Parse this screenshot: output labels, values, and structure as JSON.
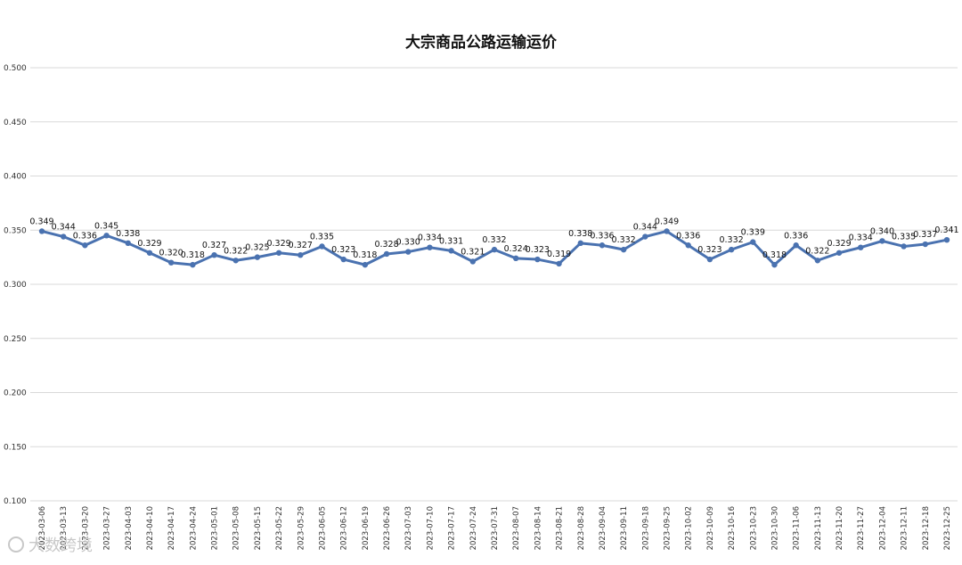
{
  "watermark": "大数跨境",
  "colors": {
    "series": "#4a72b0",
    "grid": "#d9d9d9",
    "background": "#ffffff"
  },
  "chart_data": {
    "type": "line",
    "title": "大宗商品公路运输运价",
    "xlabel": "",
    "ylabel": "",
    "ylim": [
      0.1,
      0.5
    ],
    "yticks": [
      "0.100",
      "0.150",
      "0.200",
      "0.250",
      "0.300",
      "0.350",
      "0.400",
      "0.450",
      "0.500"
    ],
    "grid": true,
    "legend": "none",
    "categories": [
      "2023-03-06",
      "2023-03-13",
      "2023-03-20",
      "2023-03-27",
      "2023-04-03",
      "2023-04-10",
      "2023-04-17",
      "2023-04-24",
      "2023-05-01",
      "2023-05-08",
      "2023-05-15",
      "2023-05-22",
      "2023-05-29",
      "2023-06-05",
      "2023-06-12",
      "2023-06-19",
      "2023-06-26",
      "2023-07-03",
      "2023-07-10",
      "2023-07-17",
      "2023-07-24",
      "2023-07-31",
      "2023-08-07",
      "2023-08-14",
      "2023-08-21",
      "2023-08-28",
      "2023-09-04",
      "2023-09-11",
      "2023-09-18",
      "2023-09-25",
      "2023-10-02",
      "2023-10-09",
      "2023-10-16",
      "2023-10-23",
      "2023-10-30",
      "2023-11-06",
      "2023-11-13",
      "2023-11-20",
      "2023-11-27",
      "2023-12-04",
      "2023-12-11",
      "2023-12-18",
      "2023-12-25"
    ],
    "series": [
      {
        "values": [
          0.349,
          0.344,
          0.336,
          0.345,
          0.338,
          0.329,
          0.32,
          0.318,
          0.327,
          0.322,
          0.325,
          0.329,
          0.327,
          0.335,
          0.323,
          0.318,
          0.328,
          0.33,
          0.334,
          0.331,
          0.321,
          0.332,
          0.324,
          0.323,
          0.319,
          0.338,
          0.336,
          0.332,
          0.344,
          0.349,
          0.336,
          0.323,
          0.332,
          0.339,
          0.318,
          0.336,
          0.322,
          0.329,
          0.334,
          0.34,
          0.335,
          0.337,
          0.341
        ],
        "labels": [
          "0.349",
          "0.344",
          "0.336",
          "0.345",
          "0.338",
          "0.329",
          "0.320",
          "0.318",
          "0.327",
          "0.322",
          "0.325",
          "0.329",
          "0.327",
          "0.335",
          "0.323",
          "0.318",
          "0.328",
          "0.330",
          "0.334",
          "0.331",
          "0.321",
          "0.332",
          "0.324",
          "0.323",
          "0.319",
          "0.338",
          "0.336",
          "0.332",
          "0.344",
          "0.349",
          "0.336",
          "0.323",
          "0.332",
          "0.339",
          "0.318",
          "0.336",
          "0.322",
          "0.329",
          "0.334",
          "0.340",
          "0.335",
          "0.337",
          "0.341"
        ]
      }
    ]
  }
}
